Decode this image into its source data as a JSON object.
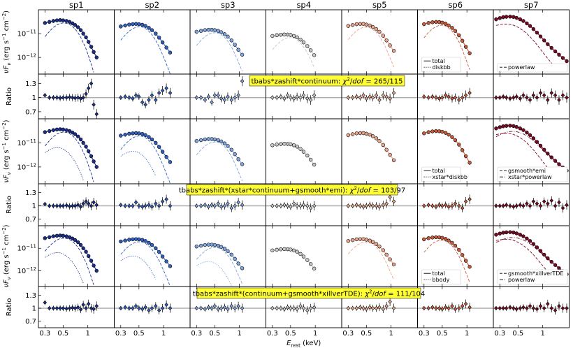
{
  "chart_data": {
    "type": "line",
    "panel_layout": "3 models x (spectrum + ratio) rows, 7 spectral columns",
    "columns": [
      "sp1",
      "sp2",
      "sp3",
      "sp4",
      "sp5",
      "sp6",
      "sp7"
    ],
    "column_colors": [
      "#1a2f8c",
      "#3060c4",
      "#7fa6e2",
      "#c8c8c8",
      "#eba58c",
      "#c85a3a",
      "#7a0a24"
    ],
    "xlabel": "E_rest (keV)",
    "xlabel_main": "E",
    "xlabel_sub": "rest",
    "xlabel_unit": " (keV)",
    "xscale": "log",
    "xlim": [
      0.25,
      2.1
    ],
    "xtick_values": [
      0.3,
      0.5,
      1
    ],
    "xtick_labels": [
      "0.3",
      "0.5",
      "1"
    ],
    "spectrum_ylabel": "νFν (erg s⁻¹ cm⁻²)",
    "spectrum_ylabel_parts": {
      "nu": "ν",
      "F": "F",
      "sub": "ν",
      "unit": " (erg s",
      "exp1": "−1",
      "cm": " cm",
      "exp2": "−2",
      "close": ")"
    },
    "spectrum_yscale": "log",
    "spectrum_ylim": [
      2e-13,
      1e-10
    ],
    "spectrum_ytick_values": [
      1e-11,
      1e-12
    ],
    "spectrum_ytick_labels": [
      {
        "base": "10",
        "exp": "−11"
      },
      {
        "base": "10",
        "exp": "−12"
      }
    ],
    "ratio_ylabel": "Ratio",
    "ratio_ylim": [
      0.55,
      1.5
    ],
    "ratio_ytick_values": [
      1.3,
      1,
      0.7
    ],
    "ratio_ytick_labels": [
      "1.3",
      "1",
      "0.7"
    ],
    "models": [
      {
        "label": "tbabs*zashift*continuum: χ²/dof = 265/115",
        "text_main": "tbabs*zashift*continuum: ",
        "chi": "χ",
        "chi_exp": "2",
        "slash": "/",
        "dof": "dof",
        "value": " = 265/115",
        "components": [
          [
            "diskbb"
          ],
          [
            "diskbb"
          ],
          [
            "diskbb"
          ],
          [
            "diskbb"
          ],
          [
            "diskbb"
          ],
          [
            "diskbb"
          ],
          [
            "powerlaw"
          ]
        ],
        "legends": [
          {
            "column": 6,
            "entries": [
              {
                "style": "solid",
                "label": "total"
              },
              {
                "style": "dotted",
                "label": "diskbb"
              }
            ]
          },
          {
            "column": 7,
            "entries": [
              {
                "style": "dashed",
                "label": "powerlaw"
              }
            ]
          }
        ]
      },
      {
        "label": "tbabs*zashift*(xstar*continuum+gsmooth*emi): χ²/dof = 103/97",
        "text_main": "tbabs*zashift*(xstar*continuum+gsmooth*emi): ",
        "chi": "χ",
        "chi_exp": "2",
        "slash": "/",
        "dof": "dof",
        "value": " = 103/97",
        "components": [
          [
            "xstar*diskbb",
            "gsmooth*emi"
          ],
          [
            "xstar*diskbb",
            "gsmooth*emi"
          ],
          [
            "gsmooth*emi"
          ],
          [],
          [],
          [],
          [
            "gsmooth*emi",
            "xstar*powerlaw"
          ]
        ],
        "legends": [
          {
            "column": 6,
            "entries": [
              {
                "style": "solid",
                "label": "total"
              },
              {
                "style": "dotted",
                "label": "xstar*diskbb"
              }
            ]
          },
          {
            "column": 7,
            "entries": [
              {
                "style": "dashed",
                "label": "gsmooth*emi"
              },
              {
                "style": "dashdot",
                "label": "xstar*powerlaw"
              }
            ]
          }
        ]
      },
      {
        "label": "tbabs*zashift*(continuum+gsmooth*xillverTDE): χ²/dof = 111/104",
        "text_main": "tbabs*zashift*(continuum+gsmooth*xillverTDE): ",
        "chi": "χ",
        "chi_exp": "2",
        "slash": "/",
        "dof": "dof",
        "value": " = 111/104",
        "components": [
          [
            "bbody",
            "xillverTDE"
          ],
          [
            "bbody",
            "xillverTDE"
          ],
          [
            "bbody",
            "xillverTDE"
          ],
          [],
          [
            "bbody"
          ],
          [
            "bbody"
          ],
          [
            "gsmooth*xillverTDE",
            "powerlaw"
          ]
        ],
        "legends": [
          {
            "column": 6,
            "entries": [
              {
                "style": "solid",
                "label": "total"
              },
              {
                "style": "dotted",
                "label": "bbody"
              }
            ]
          },
          {
            "column": 7,
            "entries": [
              {
                "style": "dashed",
                "label": "gsmooth*xillverTDE"
              },
              {
                "style": "dashdot",
                "label": "powerlaw"
              }
            ]
          }
        ]
      }
    ],
    "spectra": [
      {
        "name": "sp1",
        "energy": [
          0.3,
          0.34,
          0.38,
          0.42,
          0.46,
          0.5,
          0.55,
          0.6,
          0.65,
          0.7,
          0.76,
          0.82,
          0.88,
          0.95,
          1.02,
          1.1,
          1.18,
          1.28
        ],
        "nuFnu": [
          2.8e-11,
          3.1e-11,
          3.4e-11,
          3.6e-11,
          3.7e-11,
          3.6e-11,
          3.4e-11,
          3.1e-11,
          2.7e-11,
          2.3e-11,
          1.85e-11,
          1.4e-11,
          1e-11,
          7e-12,
          4.5e-12,
          2.8e-12,
          1.7e-12,
          1e-12
        ],
        "ratio_m1": [
          1.05,
          1.0,
          1.0,
          1.0,
          0.99,
          1.0,
          1.0,
          1.01,
          1.0,
          0.99,
          1.0,
          0.98,
          1.0,
          1.08,
          1.2,
          1.3,
          0.85,
          0.65
        ],
        "ratio_m2": [
          1.04,
          1.0,
          1.0,
          1.0,
          1.0,
          1.0,
          1.01,
          0.99,
          1.0,
          1.0,
          1.02,
          0.98,
          1.05,
          1.1,
          1.05,
          1.0,
          1.08,
          1.02
        ],
        "ratio_m3": [
          1.13,
          1.0,
          1.0,
          1.0,
          1.0,
          1.0,
          0.99,
          1.0,
          1.01,
          1.0,
          1.02,
          0.97,
          1.08,
          1.0,
          1.1,
          1.0,
          0.98,
          1.05
        ]
      },
      {
        "name": "sp2",
        "energy": [
          0.3,
          0.34,
          0.38,
          0.42,
          0.46,
          0.5,
          0.55,
          0.6,
          0.66,
          0.72,
          0.8,
          0.88,
          0.97,
          1.08,
          1.2
        ],
        "nuFnu": [
          2e-11,
          2.2e-11,
          2.4e-11,
          2.5e-11,
          2.55e-11,
          2.5e-11,
          2.35e-11,
          2.1e-11,
          1.75e-11,
          1.4e-11,
          1e-11,
          6.8e-12,
          4.3e-12,
          2.6e-12,
          1.6e-12
        ],
        "ratio_m1": [
          1.0,
          1.02,
          1.0,
          0.98,
          1.05,
          1.02,
          0.9,
          0.85,
          0.95,
          1.05,
          0.95,
          1.1,
          1.15,
          1.2,
          1.1
        ],
        "ratio_m2": [
          1.02,
          1.0,
          1.0,
          1.0,
          1.08,
          1.0,
          0.98,
          1.0,
          1.02,
          0.98,
          1.05,
          1.0,
          1.1,
          1.15,
          1.0
        ],
        "ratio_m3": [
          1.0,
          1.02,
          1.0,
          1.0,
          1.05,
          1.0,
          0.98,
          1.02,
          0.95,
          1.0,
          1.05,
          0.95,
          1.0,
          1.08,
          1.0
        ]
      },
      {
        "name": "sp3",
        "energy": [
          0.3,
          0.34,
          0.38,
          0.42,
          0.46,
          0.5,
          0.55,
          0.6,
          0.66,
          0.72,
          0.8,
          0.88,
          0.97,
          1.08
        ],
        "nuFnu": [
          1.2e-11,
          1.3e-11,
          1.4e-11,
          1.45e-11,
          1.45e-11,
          1.4e-11,
          1.3e-11,
          1.15e-11,
          9.5e-12,
          7.5e-12,
          5.2e-12,
          3.4e-12,
          2.1e-12,
          1.3e-12
        ],
        "ratio_m1": [
          1.0,
          1.0,
          0.95,
          1.02,
          0.9,
          1.05,
          1.05,
          0.98,
          0.95,
          1.02,
          0.95,
          1.0,
          1.05,
          1.35
        ],
        "ratio_m2": [
          1.0,
          1.0,
          1.02,
          0.98,
          1.02,
          1.0,
          1.05,
          0.98,
          1.0,
          1.05,
          0.95,
          1.0,
          1.08,
          1.02
        ],
        "ratio_m3": [
          1.0,
          1.0,
          0.98,
          1.02,
          1.0,
          1.05,
          0.98,
          1.0,
          1.02,
          0.98,
          1.05,
          1.0,
          1.05,
          1.0
        ]
      },
      {
        "name": "sp4",
        "energy": [
          0.3,
          0.34,
          0.38,
          0.42,
          0.46,
          0.5,
          0.55,
          0.6,
          0.66,
          0.72,
          0.8,
          0.88,
          0.97
        ],
        "nuFnu": [
          8e-12,
          8.6e-12,
          9e-12,
          9.2e-12,
          9.1e-12,
          8.8e-12,
          8e-12,
          7e-12,
          5.6e-12,
          4.3e-12,
          3e-12,
          2e-12,
          1.25e-12
        ],
        "ratio_m1": [
          1.0,
          1.0,
          1.02,
          0.98,
          1.05,
          1.0,
          0.98,
          1.02,
          1.0,
          1.05,
          0.98,
          0.95,
          1.05
        ],
        "ratio_m2": [
          1.0,
          1.0,
          1.0,
          1.02,
          1.0,
          0.98,
          1.05,
          1.0,
          1.0,
          1.02,
          1.0,
          0.95,
          1.0
        ],
        "ratio_m3": [
          1.0,
          1.0,
          1.0,
          0.98,
          1.02,
          1.0,
          1.0,
          0.98,
          1.05,
          1.0,
          0.95,
          1.0,
          1.02
        ]
      },
      {
        "name": "sp5",
        "energy": [
          0.3,
          0.34,
          0.38,
          0.42,
          0.46,
          0.5,
          0.55,
          0.6,
          0.66,
          0.72,
          0.8,
          0.88,
          0.97,
          1.08
        ],
        "nuFnu": [
          2.1e-11,
          2.3e-11,
          2.5e-11,
          2.55e-11,
          2.55e-11,
          2.4e-11,
          2.2e-11,
          1.9e-11,
          1.55e-11,
          1.2e-11,
          8.2e-12,
          5.2e-12,
          3.2e-12,
          1.9e-12
        ],
        "ratio_m1": [
          1.0,
          1.0,
          1.02,
          1.0,
          1.05,
          0.98,
          1.02,
          1.0,
          1.05,
          0.95,
          1.05,
          1.02,
          0.98,
          1.1
        ],
        "ratio_m2": [
          1.0,
          1.0,
          1.02,
          1.0,
          0.98,
          1.0,
          1.02,
          1.0,
          1.0,
          0.98,
          1.02,
          1.05,
          1.2,
          1.1
        ],
        "ratio_m3": [
          1.0,
          1.0,
          1.0,
          1.02,
          1.0,
          0.98,
          1.02,
          1.0,
          1.0,
          1.02,
          0.98,
          1.05,
          1.15,
          1.0
        ]
      },
      {
        "name": "sp6",
        "energy": [
          0.3,
          0.34,
          0.38,
          0.42,
          0.46,
          0.5,
          0.55,
          0.6,
          0.66,
          0.72,
          0.8,
          0.88,
          0.97,
          1.08
        ],
        "nuFnu": [
          2.5e-11,
          2.8e-11,
          3e-11,
          3.1e-11,
          3.05e-11,
          2.9e-11,
          2.6e-11,
          2.2e-11,
          1.75e-11,
          1.3e-11,
          8.5e-12,
          5e-12,
          2.8e-12,
          1.5e-12
        ],
        "ratio_m1": [
          1.02,
          1.0,
          1.02,
          1.0,
          0.98,
          1.0,
          1.05,
          1.02,
          0.98,
          1.0,
          0.95,
          1.0,
          1.05,
          1.1
        ],
        "ratio_m2": [
          1.0,
          1.02,
          1.0,
          0.98,
          1.02,
          1.0,
          1.02,
          0.98,
          1.0,
          1.05,
          1.0,
          0.95,
          1.1,
          1.15
        ],
        "ratio_m3": [
          1.0,
          1.0,
          1.02,
          1.0,
          1.0,
          0.98,
          1.02,
          1.0,
          1.05,
          0.98,
          1.0,
          1.05,
          1.1,
          1.02
        ]
      },
      {
        "name": "sp7",
        "energy": [
          0.27,
          0.3,
          0.33,
          0.36,
          0.4,
          0.44,
          0.48,
          0.53,
          0.58,
          0.64,
          0.7,
          0.77,
          0.85,
          0.94,
          1.04,
          1.15,
          1.28,
          1.42,
          1.58,
          1.76,
          1.96
        ],
        "nuFnu": [
          4e-11,
          4.5e-11,
          4.9e-11,
          5.1e-11,
          5.2e-11,
          5e-11,
          4.6e-11,
          4e-11,
          3.4e-11,
          2.7e-11,
          2.1e-11,
          1.55e-11,
          1.1e-11,
          7.6e-12,
          5.2e-12,
          3.6e-12,
          2.5e-12,
          1.8e-12,
          1.3e-12,
          9.5e-13,
          7e-13
        ],
        "ratio_m1": [
          1.0,
          1.0,
          1.02,
          1.0,
          0.98,
          1.0,
          1.02,
          0.98,
          1.05,
          1.0,
          0.95,
          1.05,
          1.0,
          1.1,
          1.05,
          0.95,
          1.1,
          1.05,
          0.95,
          1.05,
          1.0
        ],
        "ratio_m2": [
          1.0,
          1.0,
          1.0,
          1.02,
          1.0,
          0.98,
          1.0,
          1.02,
          1.0,
          1.05,
          1.0,
          1.1,
          1.05,
          1.0,
          1.1,
          1.05,
          1.12,
          1.0,
          1.08,
          0.95,
          1.02
        ],
        "ratio_m3": [
          1.0,
          1.0,
          1.0,
          1.0,
          1.02,
          1.0,
          0.98,
          1.0,
          1.02,
          1.0,
          1.05,
          1.0,
          0.98,
          1.05,
          1.0,
          1.1,
          1.0,
          0.95,
          1.05,
          1.0,
          1.0
        ]
      }
    ]
  }
}
